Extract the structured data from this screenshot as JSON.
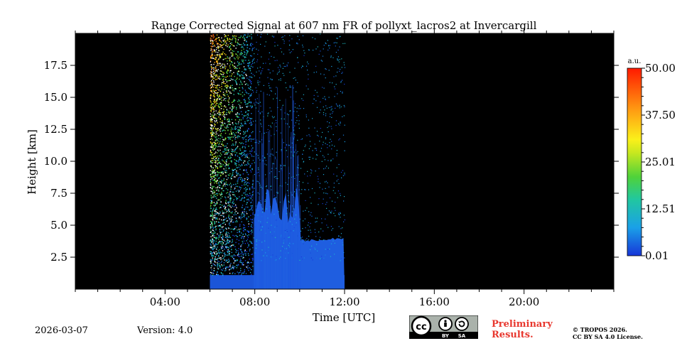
{
  "chart_data": {
    "type": "heatmap",
    "title": "Range Corrected Signal at 607 nm FR of pollyxt_lacros2 at Invercargill",
    "xlabel": "Time [UTC]",
    "ylabel": "Height [km]",
    "xlim_hours": [
      0,
      24
    ],
    "ylim_km": [
      0,
      20
    ],
    "x_ticks": [
      {
        "value": 4,
        "label": "04:00"
      },
      {
        "value": 8,
        "label": "08:00"
      },
      {
        "value": 12,
        "label": "12:00"
      },
      {
        "value": 16,
        "label": "16:00"
      },
      {
        "value": 20,
        "label": "20:00"
      }
    ],
    "y_ticks": [
      {
        "value": 2.5,
        "label": "2.5"
      },
      {
        "value": 5.0,
        "label": "5.0"
      },
      {
        "value": 7.5,
        "label": "7.5"
      },
      {
        "value": 10.0,
        "label": "10.0"
      },
      {
        "value": 12.5,
        "label": "12.5"
      },
      {
        "value": 15.0,
        "label": "15.0"
      },
      {
        "value": 17.5,
        "label": "17.5"
      }
    ],
    "colorbar": {
      "unit": "a.u.",
      "range": [
        0.01,
        50.0
      ],
      "ticks": [
        {
          "value": 0.01,
          "label": "0.01"
        },
        {
          "value": 12.51,
          "label": "12.51"
        },
        {
          "value": 25.01,
          "label": "25.01"
        },
        {
          "value": 37.5,
          "label": "37.50"
        },
        {
          "value": 50.0,
          "label": "50.00"
        }
      ]
    },
    "data_window_hours": [
      6.0,
      12.0
    ],
    "features": {
      "noisy_region_hours": [
        6.0,
        7.9
      ],
      "boundary_layer_top_km": 1.1,
      "cloud_layer_top_km": 3.8
    }
  },
  "footer": {
    "date": "2026-03-07",
    "version": "Version: 4.0",
    "preliminary_line1": "Preliminary",
    "preliminary_line2": "Results.",
    "copyright_line1": "© TROPOS 2026.",
    "copyright_line2": "CC BY SA 4.0 License.",
    "cc_label": "cc",
    "by_label": "BY",
    "sa_label": "SA"
  },
  "colors": {
    "background": "#000000",
    "signal_low": "#1a4fd6",
    "signal_high": "#ff1a00"
  }
}
